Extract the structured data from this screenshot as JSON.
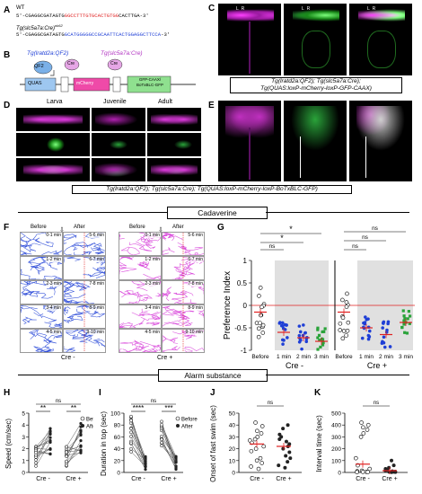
{
  "panelA": {
    "label": "A",
    "wt_title": "WT",
    "wt_seq_pre": "5'-CGAGGCGATAGTG",
    "wt_seq_red": "GGCCTTTGTGCACTGTGG",
    "wt_seq_post": "CACTTGA-3'",
    "mut_title": "Tg(slc5a7a:Cre)",
    "mut_sup": "nk62",
    "mut_seq_pre": "5'-CGAGGCGATAGTG",
    "mut_seq_blue": "GCATGGGGGCCGCAATTCACTGGAGGCTTCCA",
    "mut_seq_post": "-3'"
  },
  "panelB": {
    "label": "B",
    "left_title": "Tg(lratd2a:QF2)",
    "right_title": "Tg(slc5a7a:Cre)",
    "qf2": "QF2",
    "cre": "Cre",
    "quas": "QUAS",
    "mcherry": "mCherry",
    "gfp": "GFP-CAAX/ BoTxBLC-GFP"
  },
  "panelC": {
    "label": "C",
    "lr": [
      "L",
      "R"
    ],
    "caption_line1": "Tg(lratd2a:QF2); Tg(slc5a7a:Cre);",
    "caption_line2": "Tg(QUAS:loxP-mCherry-loxP-GFP-CAAX)"
  },
  "panelD": {
    "label": "D",
    "cols": [
      "Larva",
      "Juvenile",
      "Adult"
    ]
  },
  "panelE": {
    "label": "E"
  },
  "de_caption": "Tg(lratd2a:QF2); Tg(slc5a7a:Cre); Tg(QUAS:loxP-mCherry-loxP-BoTxBLC-GFP)",
  "cadaverine_banner": "Cadaverine",
  "alarm_banner": "Alarm substance",
  "panelF": {
    "label": "F",
    "before": "Before",
    "after": "After",
    "time_before": [
      "0-1 min",
      "1-2 min",
      "2-3 min",
      "3-4 min",
      "4-5 min"
    ],
    "time_after": [
      "5-6 min",
      "6-7 min",
      "7-8 min",
      "8-9 min",
      "9-10 min"
    ],
    "group_left": "Cre -",
    "group_right": "Cre +"
  },
  "colors": {
    "blue": "#1f3fd6",
    "magenta": "#d63ad8",
    "green": "#2aa33a",
    "red": "#e02020",
    "grey_bg": "#e0e0e0"
  },
  "chart_data": [
    {
      "panel": "G",
      "type": "scatter",
      "ylabel": "Preference Index",
      "ylim": [
        -1,
        1
      ],
      "yticks": [
        "-1",
        "-0.5",
        "0",
        "0.5",
        "1"
      ],
      "categories": [
        "Before",
        "1 min",
        "2 min",
        "3 min",
        "Before",
        "1 min",
        "2 min",
        "3 min"
      ],
      "groups": [
        "Cre -",
        "Cre +"
      ],
      "sig": [
        "ns",
        "*",
        "*",
        "ns",
        "ns",
        "ns"
      ],
      "means": [
        -0.15,
        -0.6,
        -0.72,
        -0.8,
        -0.15,
        -0.5,
        -0.65,
        -0.38
      ]
    },
    {
      "panel": "H",
      "type": "scatter",
      "ylabel": "Speed (cm/sec)",
      "ylim": [
        0,
        5
      ],
      "yticks": [
        "0",
        "1",
        "2",
        "3",
        "4",
        "5"
      ],
      "categories": [
        "Cre -",
        "Cre +"
      ],
      "legend": [
        "Before",
        "After"
      ],
      "sig": [
        "**",
        "**",
        "ns"
      ]
    },
    {
      "panel": "I",
      "type": "scatter",
      "ylabel": "Duration in top (sec)",
      "ylim": [
        0,
        100
      ],
      "yticks": [
        "0",
        "20",
        "40",
        "60",
        "80",
        "100"
      ],
      "categories": [
        "Cre -",
        "Cre +"
      ],
      "legend": [
        "Before",
        "After"
      ],
      "sig": [
        "****",
        "***",
        "ns"
      ]
    },
    {
      "panel": "J",
      "type": "scatter",
      "ylabel": "Onset of fast swim (sec)",
      "ylim": [
        0,
        50
      ],
      "yticks": [
        "0",
        "10",
        "20",
        "30",
        "40",
        "50"
      ],
      "categories": [
        "Cre -",
        "Cre +"
      ],
      "sig": [
        "ns"
      ],
      "values": [
        [
          42,
          39,
          35,
          33,
          30,
          28,
          27,
          25,
          22,
          20,
          18,
          12,
          10,
          8,
          5,
          3
        ],
        [
          40,
          37,
          32,
          30,
          28,
          26,
          24,
          22,
          20,
          17,
          14,
          12,
          9,
          6,
          4
        ]
      ],
      "means": [
        24,
        22
      ]
    },
    {
      "panel": "K",
      "type": "scatter",
      "ylabel": "Interval time (sec)",
      "ylim": [
        0,
        500
      ],
      "yticks": [
        "0",
        "100",
        "200",
        "300",
        "400",
        "500"
      ],
      "categories": [
        "Cre -",
        "Cre +"
      ],
      "sig": [
        "ns"
      ],
      "values": [
        [
          420,
          400,
          380,
          360,
          330,
          300,
          120,
          60,
          30,
          15,
          10,
          5,
          5,
          3,
          2
        ],
        [
          100,
          60,
          40,
          30,
          20,
          15,
          10,
          8,
          5,
          5,
          3,
          2
        ]
      ],
      "means": [
        70,
        15
      ]
    }
  ],
  "sigtext": {
    "h_left": "**",
    "h_right": "**",
    "h_top": "ns",
    "i_left": "****",
    "i_right": "***",
    "i_top": "ns",
    "j": "ns",
    "k": "ns",
    "g": [
      "ns",
      "*",
      "*",
      "ns",
      "ns",
      "ns"
    ]
  },
  "labels": {
    "G": "G",
    "H": "H",
    "I": "I",
    "J": "J",
    "K": "K",
    "g_ylabel": "Preference Index",
    "h_ylabel": "Speed (cm/sec)",
    "i_ylabel": "Duration in top (sec)",
    "j_ylabel": "Onset of fast swim (sec)",
    "k_ylabel": "Interval time (sec)",
    "cre_minus": "Cre -",
    "cre_plus": "Cre +",
    "before": "Before",
    "after": "After",
    "cat": [
      "Before",
      "1 min",
      "2 min",
      "3 min"
    ],
    "g_yticks": [
      "1",
      "0.5",
      "0",
      "-0.5",
      "-1"
    ],
    "h_yticks": [
      "5",
      "4",
      "3",
      "2",
      "1",
      "0"
    ],
    "i_yticks": [
      "100",
      "80",
      "60",
      "40",
      "20",
      "0"
    ],
    "j_yticks": [
      "50",
      "40",
      "30",
      "20",
      "10",
      "0"
    ],
    "k_yticks": [
      "500",
      "400",
      "300",
      "200",
      "100",
      "0"
    ]
  }
}
